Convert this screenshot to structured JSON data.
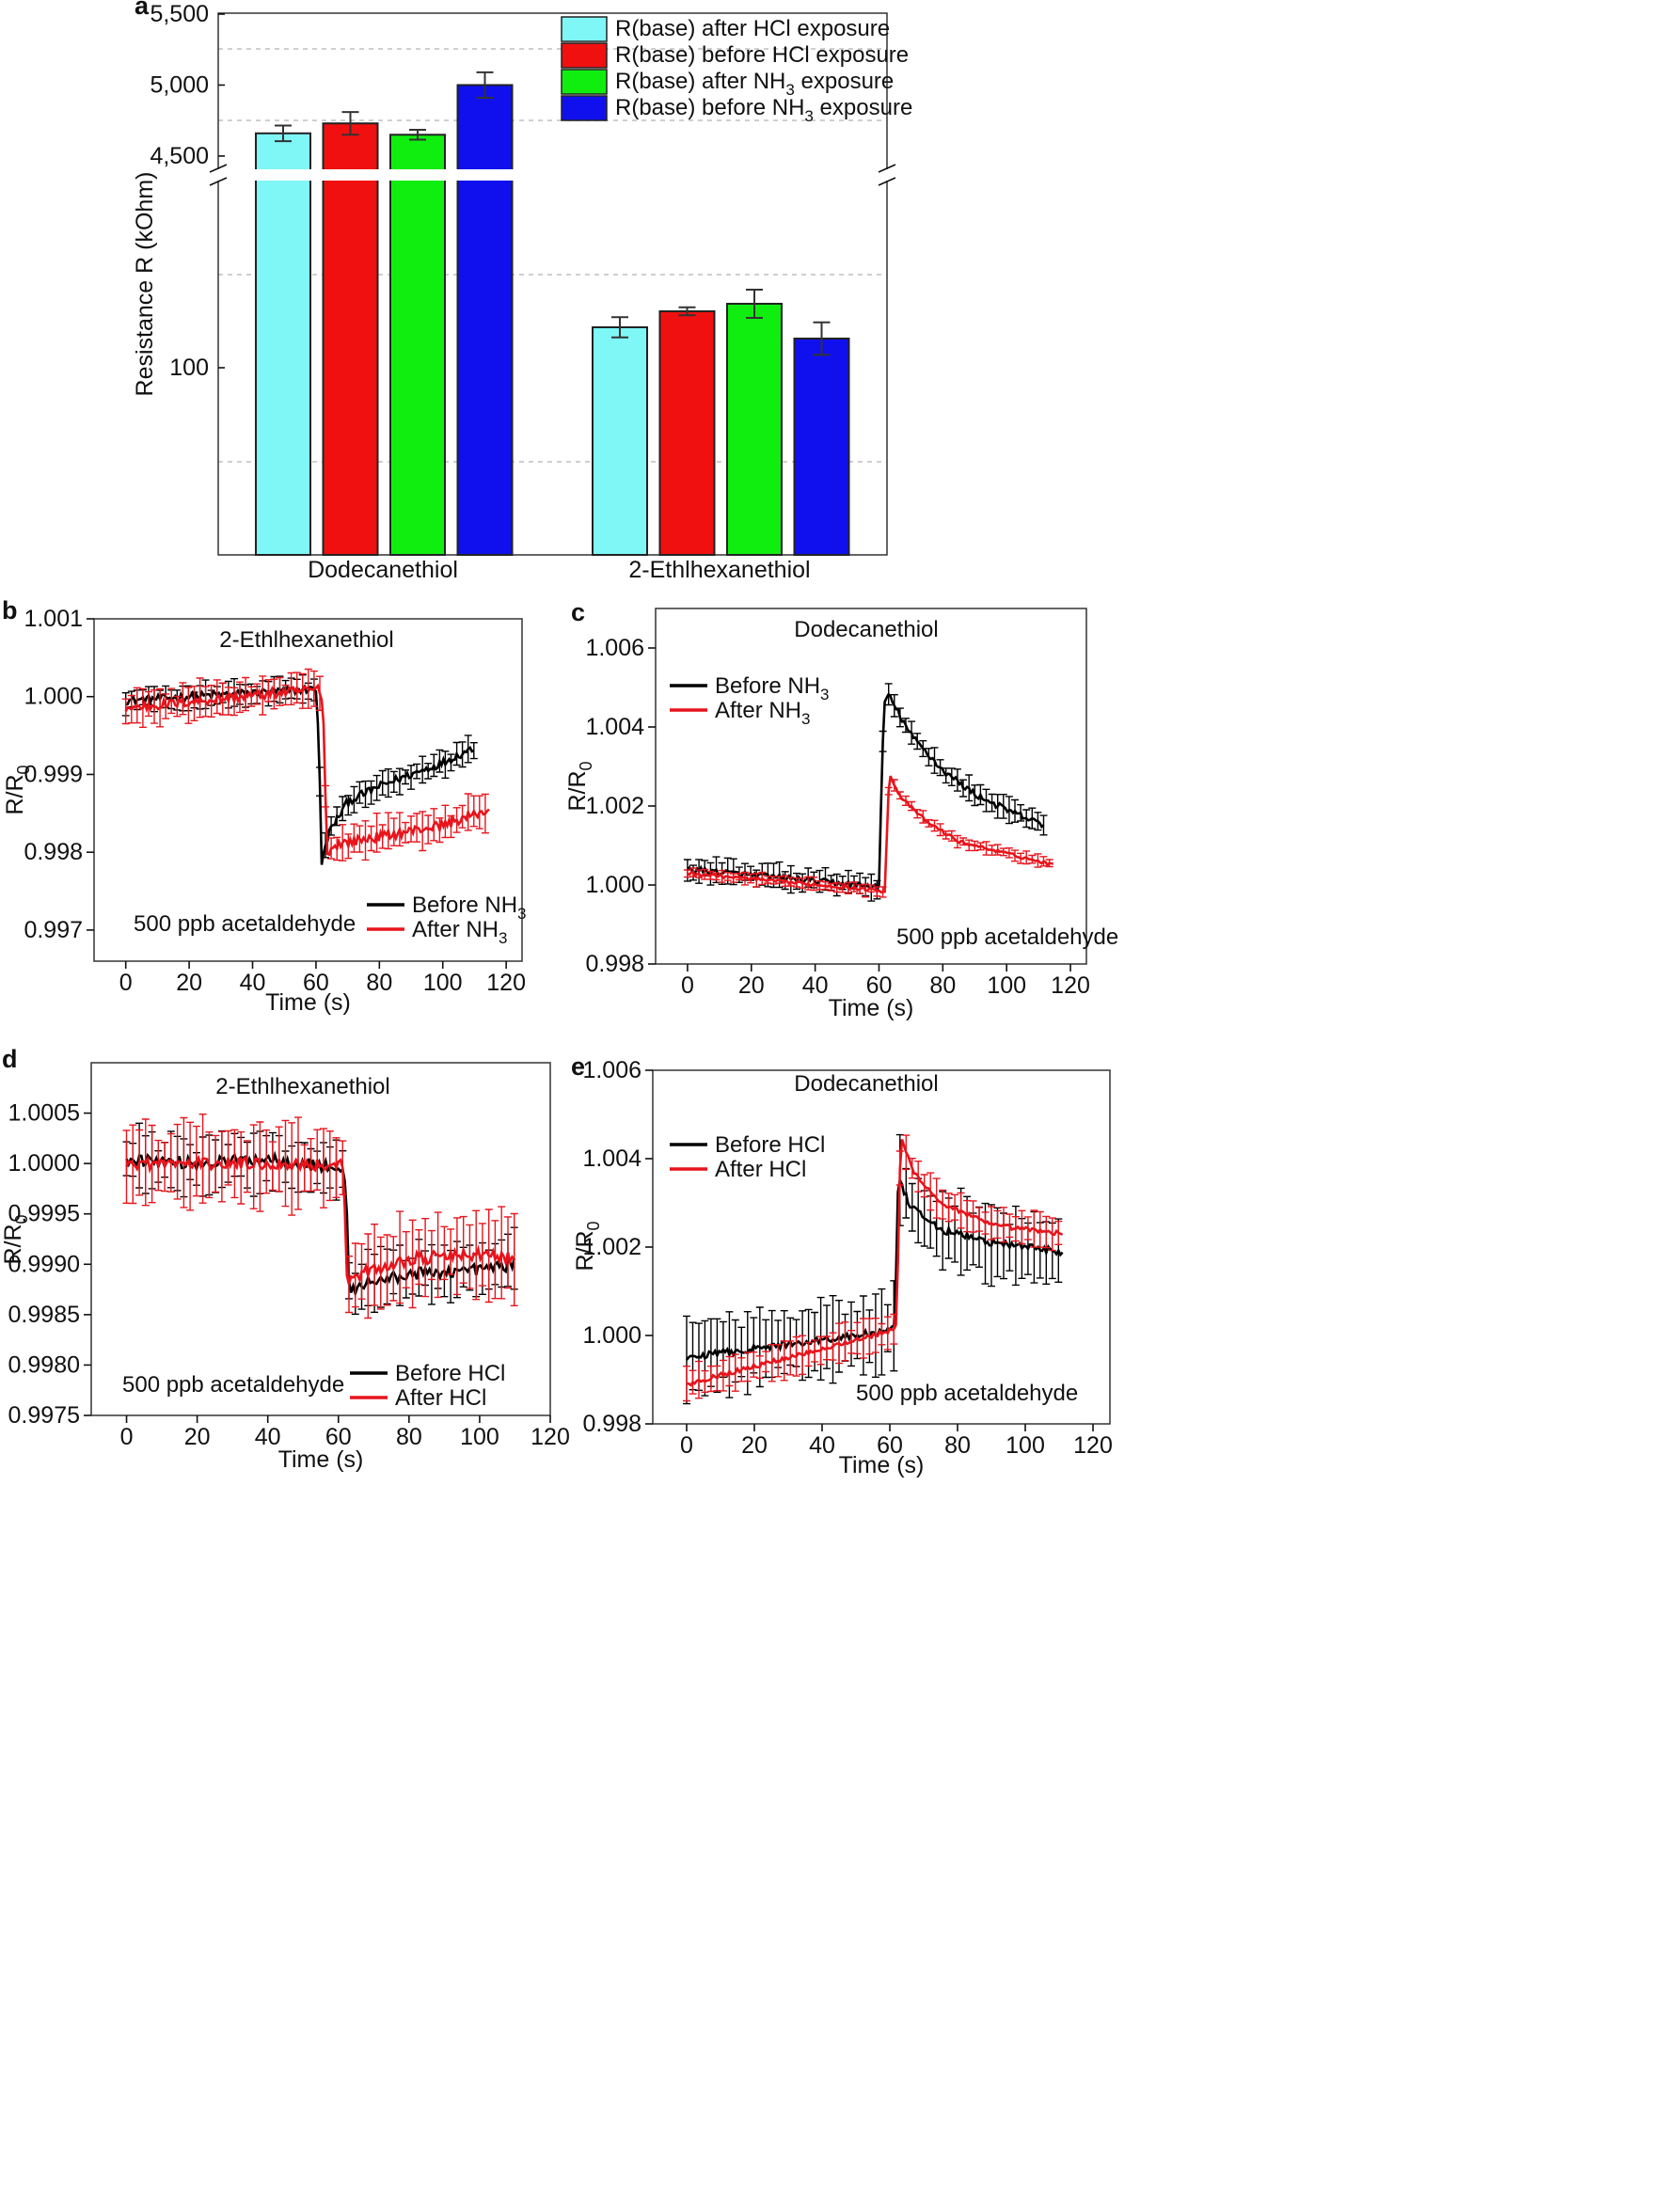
{
  "chart_data": [
    {
      "id": "a",
      "panel_label": "a",
      "type": "bar",
      "ylabel": "Resistance R (kOhm)",
      "y_axis_break": true,
      "upper_ylim": [
        4400,
        5500
      ],
      "upper_yticks": [
        "4,500",
        "5,000",
        "5,500"
      ],
      "lower_yticks": [
        "100"
      ],
      "categories": [
        "Dodecanethiol",
        "2-Ethlhexanethiol"
      ],
      "series": [
        {
          "name": "R(base) after HCl exposure",
          "color": "#7ff7f7",
          "values": [
            4660,
            118
          ],
          "errors": [
            55,
            5
          ]
        },
        {
          "name": "R(base) before HCl exposure",
          "color": "#f01010",
          "values": [
            4730,
            127
          ],
          "errors": [
            80,
            2
          ]
        },
        {
          "name": "R(base) after NH3 exposure",
          "color": "#10ee10",
          "values": [
            4650,
            131
          ],
          "errors": [
            35,
            7
          ]
        },
        {
          "name": "R(base) before NH3 exposure",
          "color": "#1010ee",
          "values": [
            5000,
            111
          ],
          "errors": [
            90,
            8
          ]
        }
      ],
      "legend": {
        "position": "top-right",
        "items": [
          {
            "pre": "R(base) after HCl exposure",
            "sub": "",
            "post": ""
          },
          {
            "pre": "R(base) before HCl exposure",
            "sub": "",
            "post": ""
          },
          {
            "pre": "R(base) after NH",
            "sub": "3",
            "post": " exposure"
          },
          {
            "pre": "R(base) before NH",
            "sub": "3",
            "post": " exposure"
          }
        ]
      }
    },
    {
      "id": "b",
      "panel_label": "b",
      "type": "line",
      "title": "2-Ethlhexanethiol",
      "annotation": "500 ppb acetaldehyde",
      "xlabel": "Time (s)",
      "ylabel_main": "R/R",
      "ylabel_sub": "0",
      "xlim": [
        -10,
        125
      ],
      "ylim": [
        0.9966,
        1.001
      ],
      "xticks": [
        0,
        20,
        40,
        60,
        80,
        100,
        120
      ],
      "yticks": [
        0.997,
        0.998,
        0.999,
        1.0,
        1.001
      ],
      "ytick_labels": [
        "0.997",
        "0.998",
        "0.999",
        "1.000",
        "1.001"
      ],
      "legend": [
        {
          "pre": "Before NH",
          "sub": "3",
          "color": "#000000"
        },
        {
          "pre": "After NH",
          "sub": "3",
          "color": "#e8141c"
        }
      ],
      "series": [
        {
          "name": "Before NH3",
          "color": "#000000",
          "xmax": 110,
          "keypoints": [
            [
              0,
              0.99995
            ],
            [
              60,
              1.0001
            ],
            [
              60.8,
              0.99955
            ],
            [
              61.8,
              0.99785
            ],
            [
              64,
              0.99825
            ],
            [
              70,
              0.99865
            ],
            [
              80,
              0.99885
            ],
            [
              90,
              0.999
            ],
            [
              100,
              0.99915
            ],
            [
              110,
              0.99935
            ]
          ],
          "error_band": 0.00016,
          "noise": 5e-05
        },
        {
          "name": "After NH3",
          "color": "#e8141c",
          "xmax": 115,
          "keypoints": [
            [
              0,
              0.99985
            ],
            [
              61.5,
              1.0001
            ],
            [
              62.5,
              0.9996
            ],
            [
              63.5,
              0.99795
            ],
            [
              66,
              0.9981
            ],
            [
              80,
              0.9982
            ],
            [
              100,
              0.99835
            ],
            [
              115,
              0.99855
            ]
          ],
          "error_band": 0.00022,
          "noise": 6e-05
        }
      ]
    },
    {
      "id": "c",
      "panel_label": "c",
      "type": "line",
      "title": "Dodecanethiol",
      "annotation": "500 ppb acetaldehyde",
      "xlabel": "Time (s)",
      "ylabel_main": "R/R",
      "ylabel_sub": "0",
      "xlim": [
        -10,
        125
      ],
      "ylim": [
        0.998,
        1.007
      ],
      "xticks": [
        0,
        20,
        40,
        60,
        80,
        100,
        120
      ],
      "yticks": [
        0.998,
        1.0,
        1.002,
        1.004,
        1.006
      ],
      "ytick_labels": [
        "0.998",
        "1.000",
        "1.002",
        "1.004",
        "1.006"
      ],
      "legend": [
        {
          "pre": "Before NH",
          "sub": "3",
          "color": "#000000"
        },
        {
          "pre": "After NH",
          "sub": "3",
          "color": "#e8141c"
        }
      ],
      "series": [
        {
          "name": "Before NH3",
          "color": "#000000",
          "xmax": 112,
          "keypoints": [
            [
              0,
              1.0004
            ],
            [
              60,
              0.99995
            ],
            [
              61.5,
              1.0046
            ],
            [
              63,
              1.0048
            ],
            [
              70,
              1.0038
            ],
            [
              80,
              1.0029
            ],
            [
              90,
              1.0023
            ],
            [
              100,
              1.0019
            ],
            [
              112,
              1.0015
            ]
          ],
          "error_band": 0.0003,
          "noise": 8e-05
        },
        {
          "name": "After NH3",
          "color": "#e8141c",
          "xmax": 115,
          "keypoints": [
            [
              0,
              1.0003
            ],
            [
              61.8,
              0.99985
            ],
            [
              63.2,
              1.0028
            ],
            [
              67,
              1.0022
            ],
            [
              75,
              1.0016
            ],
            [
              85,
              1.0011
            ],
            [
              100,
              1.0008
            ],
            [
              115,
              1.0005
            ]
          ],
          "error_band": 0.00015,
          "noise": 4e-05
        }
      ]
    },
    {
      "id": "d",
      "panel_label": "d",
      "type": "line",
      "title": "2-Ethlhexanethiol",
      "annotation": "500 ppb acetaldehyde",
      "xlabel": "Time (s)",
      "ylabel_main": "R/R",
      "ylabel_sub": "0",
      "xlim": [
        -10,
        120
      ],
      "ylim": [
        0.9975,
        1.001
      ],
      "xticks": [
        0,
        20,
        40,
        60,
        80,
        100,
        120
      ],
      "yticks": [
        0.9975,
        0.998,
        0.9985,
        0.999,
        0.9995,
        1.0,
        1.0005
      ],
      "ytick_labels": [
        "0.9975",
        "0.9980",
        "0.9985",
        "0.9990",
        "0.9995",
        "1.0000",
        "1.0005"
      ],
      "legend": [
        {
          "pre": "Before HCl",
          "sub": "",
          "color": "#000000"
        },
        {
          "pre": "After HCl",
          "sub": "",
          "color": "#e8141c"
        }
      ],
      "series": [
        {
          "name": "Before HCl",
          "color": "#000000",
          "xmax": 110,
          "keypoints": [
            [
              0,
              1.00005
            ],
            [
              20,
              1.0
            ],
            [
              40,
              1.00005
            ],
            [
              60,
              0.99995
            ],
            [
              62,
              0.99985
            ],
            [
              63.2,
              0.9987
            ],
            [
              66,
              0.9988
            ],
            [
              80,
              0.9989
            ],
            [
              100,
              0.99895
            ],
            [
              110,
              0.999
            ]
          ],
          "error_band": 0.00028,
          "noise": 6e-05
        },
        {
          "name": "After HCl",
          "color": "#e8141c",
          "xmax": 110,
          "keypoints": [
            [
              0,
              1.0
            ],
            [
              20,
              1.0
            ],
            [
              40,
              1.0
            ],
            [
              61.5,
              0.99998
            ],
            [
              62.5,
              0.9988
            ],
            [
              66,
              0.9989
            ],
            [
              80,
              0.99905
            ],
            [
              100,
              0.9991
            ],
            [
              110,
              0.99905
            ]
          ],
          "error_band": 0.0004,
          "noise": 6e-05
        }
      ]
    },
    {
      "id": "e",
      "panel_label": "e",
      "type": "line",
      "title": "Dodecanethiol",
      "annotation": "500 ppb acetaldehyde",
      "xlabel": "Time (s)",
      "ylabel_main": "R/R",
      "ylabel_sub": "0",
      "xlim": [
        -10,
        125
      ],
      "ylim": [
        0.998,
        1.006
      ],
      "xticks": [
        0,
        20,
        40,
        60,
        80,
        100,
        120
      ],
      "yticks": [
        0.998,
        1.0,
        1.002,
        1.004,
        1.006
      ],
      "ytick_labels": [
        "0.998",
        "1.000",
        "1.002",
        "1.004",
        "1.006"
      ],
      "legend": [
        {
          "pre": "Before HCl",
          "sub": "",
          "color": "#000000"
        },
        {
          "pre": "After HCl",
          "sub": "",
          "color": "#e8141c"
        }
      ],
      "series": [
        {
          "name": "Before HCl",
          "color": "#000000",
          "xmax": 111,
          "keypoints": [
            [
              0,
              0.9995
            ],
            [
              30,
              0.9998
            ],
            [
              60,
              1.0001
            ],
            [
              61.5,
              1.0002
            ],
            [
              62.5,
              1.0036
            ],
            [
              66,
              1.0029
            ],
            [
              75,
              1.0024
            ],
            [
              90,
              1.0021
            ],
            [
              111,
              1.0019
            ]
          ],
          "error_band": 0.0009,
          "noise": 8e-05
        },
        {
          "name": "After HCl",
          "color": "#e8141c",
          "xmax": 111,
          "keypoints": [
            [
              0,
              0.9989
            ],
            [
              30,
              0.9995
            ],
            [
              60,
              1.0001
            ],
            [
              62,
              1.0002
            ],
            [
              63.2,
              1.0045
            ],
            [
              67,
              1.0037
            ],
            [
              75,
              1.003
            ],
            [
              90,
              1.0025
            ],
            [
              111,
              1.0023
            ]
          ],
          "error_band": 0.0004,
          "noise": 5e-05
        }
      ]
    }
  ]
}
